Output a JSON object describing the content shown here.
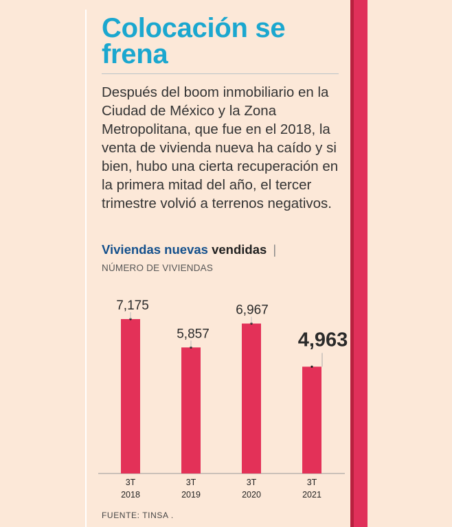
{
  "article": {
    "title": "Colocación se frena",
    "intro": "Después del boom inmobiliario en la Ciudad de México y la Zona Metropolitana, que fue en el 2018, la venta de vivienda nueva ha caído y si bien, hubo una cierta recuperación en la primera mitad del año, el tercer trimestre volvió a terrenos negativos.",
    "source": "FUENTE: TINSA ."
  },
  "colors": {
    "background": "#fce8d8",
    "bar": "#e33158",
    "title": "#1ba7cf",
    "chart_title": "#14508c",
    "accent_band": "#e0305a"
  },
  "chart_data": {
    "type": "bar",
    "title_highlight": "Viviendas nuevas",
    "title_rest": "vendidas",
    "title_separator": "|",
    "subtitle": "NÚMERO DE VIVIENDAS",
    "categories": [
      {
        "period": "3T",
        "year": "2018"
      },
      {
        "period": "3T",
        "year": "2019"
      },
      {
        "period": "3T",
        "year": "2020"
      },
      {
        "period": "3T",
        "year": "2021"
      }
    ],
    "values": [
      7175,
      5857,
      6967,
      4963
    ],
    "value_labels": [
      "7,175",
      "5,857",
      "6,967",
      "4,963"
    ],
    "highlighted_index": 3,
    "ylim": [
      0,
      8000
    ],
    "xlabel": "",
    "ylabel": ""
  }
}
